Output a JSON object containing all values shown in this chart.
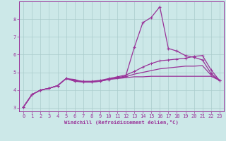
{
  "xlabel": "Windchill (Refroidissement éolien,°C)",
  "bg_color": "#cce8e8",
  "grid_color": "#aacccc",
  "line_color": "#993399",
  "xlim": [
    -0.5,
    23.5
  ],
  "ylim": [
    2.8,
    9.0
  ],
  "x_ticks": [
    0,
    1,
    2,
    3,
    4,
    5,
    6,
    7,
    8,
    9,
    10,
    11,
    12,
    13,
    14,
    15,
    16,
    17,
    18,
    19,
    20,
    21,
    22,
    23
  ],
  "y_ticks": [
    3,
    4,
    5,
    6,
    7,
    8
  ],
  "curve1_x": [
    0,
    1,
    2,
    3,
    4,
    5,
    6,
    7,
    8,
    9,
    10,
    11,
    12,
    13,
    14,
    15,
    16,
    17,
    18,
    19,
    20,
    21,
    22,
    23
  ],
  "curve1_y": [
    3.05,
    3.75,
    4.0,
    4.1,
    4.25,
    4.65,
    4.5,
    4.45,
    4.45,
    4.5,
    4.6,
    4.7,
    4.8,
    6.4,
    7.8,
    8.1,
    8.7,
    6.35,
    6.2,
    5.95,
    5.85,
    5.7,
    4.95,
    4.55
  ],
  "curve2_x": [
    0,
    1,
    2,
    3,
    4,
    5,
    6,
    7,
    8,
    9,
    10,
    11,
    12,
    13,
    14,
    15,
    16,
    17,
    18,
    19,
    20,
    21,
    22,
    23
  ],
  "curve2_y": [
    3.05,
    3.75,
    4.0,
    4.1,
    4.25,
    4.65,
    4.6,
    4.45,
    4.45,
    4.5,
    4.6,
    4.65,
    4.7,
    4.75,
    4.75,
    4.78,
    4.78,
    4.78,
    4.78,
    4.78,
    4.78,
    4.78,
    4.78,
    4.55
  ],
  "curve3_x": [
    0,
    1,
    2,
    3,
    4,
    5,
    6,
    7,
    8,
    9,
    10,
    11,
    12,
    13,
    14,
    15,
    16,
    17,
    18,
    19,
    20,
    21,
    22,
    23
  ],
  "curve3_y": [
    3.05,
    3.75,
    4.0,
    4.1,
    4.25,
    4.65,
    4.55,
    4.5,
    4.5,
    4.55,
    4.65,
    4.75,
    4.85,
    5.05,
    5.3,
    5.5,
    5.65,
    5.7,
    5.75,
    5.8,
    5.9,
    5.95,
    5.15,
    4.55
  ],
  "curve4_x": [
    0,
    1,
    2,
    3,
    4,
    5,
    6,
    7,
    8,
    9,
    10,
    11,
    12,
    13,
    14,
    15,
    16,
    17,
    18,
    19,
    20,
    21,
    22,
    23
  ],
  "curve4_y": [
    3.05,
    3.75,
    4.0,
    4.1,
    4.25,
    4.65,
    4.52,
    4.47,
    4.47,
    4.52,
    4.62,
    4.68,
    4.75,
    4.9,
    5.0,
    5.1,
    5.2,
    5.25,
    5.3,
    5.35,
    5.35,
    5.38,
    4.85,
    4.55
  ]
}
